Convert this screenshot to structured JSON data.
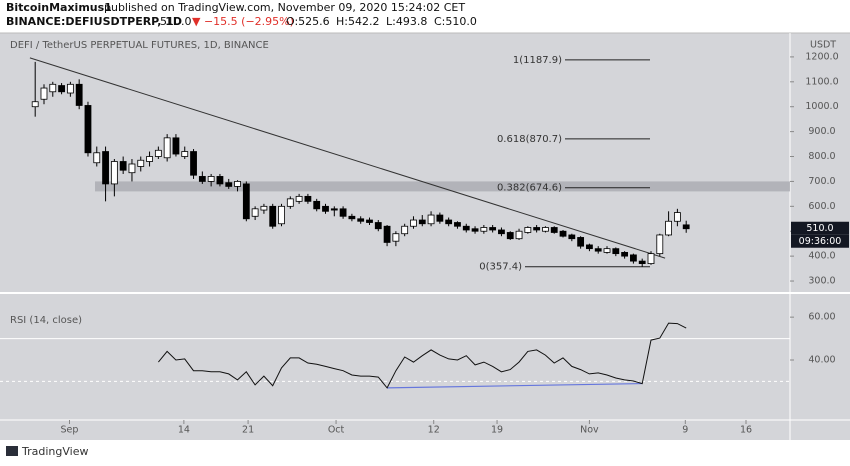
{
  "header": {
    "author": "BitcoinMaximus1",
    "published": "published on TradingView.com, November 09, 2020 15:24:02 CET",
    "symbol": "BINANCE:DEFIUSDTPERP, 1D",
    "last": "510.0",
    "change": "▼ −15.5 (−2.95%)",
    "ohlc": [
      "O:525.6",
      "H:542.2",
      "L:493.8",
      "C:510.0"
    ]
  },
  "footer": "TradingView",
  "chart_data": [
    {
      "type": "candlestick",
      "title": "DEFI / TetherUS PERPETUAL FUTURES, 1D, BINANCE",
      "axis_unit": "USDT",
      "up_color": "#ffffff",
      "down_color": "#000000",
      "candles": [
        [
          1000,
          1180,
          960,
          1020
        ],
        [
          1030,
          1090,
          1010,
          1075
        ],
        [
          1060,
          1100,
          1040,
          1090
        ],
        [
          1085,
          1095,
          1050,
          1060
        ],
        [
          1055,
          1100,
          1040,
          1090
        ],
        [
          1090,
          1110,
          990,
          1005
        ],
        [
          1005,
          1020,
          800,
          815
        ],
        [
          775,
          840,
          760,
          815
        ],
        [
          820,
          840,
          620,
          690
        ],
        [
          690,
          790,
          640,
          780
        ],
        [
          780,
          800,
          730,
          745
        ],
        [
          735,
          790,
          700,
          770
        ],
        [
          760,
          800,
          740,
          785
        ],
        [
          780,
          820,
          760,
          800
        ],
        [
          800,
          840,
          790,
          825
        ],
        [
          795,
          890,
          780,
          875
        ],
        [
          875,
          890,
          800,
          810
        ],
        [
          800,
          840,
          790,
          820
        ],
        [
          820,
          830,
          710,
          725
        ],
        [
          720,
          740,
          690,
          700
        ],
        [
          700,
          730,
          680,
          720
        ],
        [
          720,
          730,
          680,
          690
        ],
        [
          695,
          710,
          670,
          680
        ],
        [
          680,
          705,
          660,
          700
        ],
        [
          690,
          700,
          540,
          550
        ],
        [
          560,
          600,
          545,
          590
        ],
        [
          585,
          610,
          570,
          600
        ],
        [
          600,
          610,
          510,
          520
        ],
        [
          530,
          610,
          520,
          600
        ],
        [
          600,
          640,
          590,
          630
        ],
        [
          620,
          650,
          610,
          640
        ],
        [
          640,
          650,
          610,
          620
        ],
        [
          620,
          630,
          580,
          590
        ],
        [
          600,
          610,
          570,
          580
        ],
        [
          590,
          600,
          560,
          585
        ],
        [
          590,
          600,
          550,
          560
        ],
        [
          560,
          570,
          540,
          550
        ],
        [
          550,
          560,
          530,
          540
        ],
        [
          545,
          555,
          525,
          535
        ],
        [
          535,
          545,
          500,
          510
        ],
        [
          520,
          525,
          440,
          455
        ],
        [
          460,
          500,
          440,
          490
        ],
        [
          490,
          530,
          480,
          520
        ],
        [
          520,
          560,
          510,
          545
        ],
        [
          545,
          565,
          520,
          530
        ],
        [
          530,
          580,
          520,
          565
        ],
        [
          565,
          575,
          530,
          540
        ],
        [
          545,
          555,
          520,
          530
        ],
        [
          535,
          540,
          510,
          520
        ],
        [
          520,
          530,
          495,
          505
        ],
        [
          510,
          520,
          490,
          500
        ],
        [
          500,
          525,
          490,
          515
        ],
        [
          515,
          525,
          495,
          505
        ],
        [
          505,
          515,
          480,
          490
        ],
        [
          495,
          500,
          465,
          470
        ],
        [
          470,
          510,
          465,
          500
        ],
        [
          495,
          520,
          490,
          515
        ],
        [
          515,
          525,
          495,
          505
        ],
        [
          500,
          520,
          495,
          515
        ],
        [
          515,
          520,
          490,
          495
        ],
        [
          500,
          505,
          475,
          480
        ],
        [
          485,
          490,
          460,
          470
        ],
        [
          475,
          480,
          430,
          440
        ],
        [
          445,
          450,
          420,
          430
        ],
        [
          430,
          440,
          410,
          420
        ],
        [
          415,
          440,
          410,
          430
        ],
        [
          430,
          435,
          400,
          410
        ],
        [
          415,
          420,
          390,
          400
        ],
        [
          405,
          410,
          370,
          380
        ],
        [
          380,
          390,
          357,
          370
        ],
        [
          370,
          420,
          365,
          410
        ],
        [
          410,
          490,
          400,
          485
        ],
        [
          485,
          580,
          480,
          540
        ],
        [
          540,
          590,
          520,
          575
        ],
        [
          525.6,
          542.2,
          493.8,
          510.0
        ]
      ],
      "xlim": [
        -4,
        85.8
      ],
      "xticks": [
        {
          "value": 3.9,
          "label": "Sep"
        },
        {
          "value": 16.9,
          "label": "14"
        },
        {
          "value": 24.2,
          "label": "21"
        },
        {
          "value": 34.2,
          "label": "Oct"
        },
        {
          "value": 45.3,
          "label": "12"
        },
        {
          "value": 52.5,
          "label": "19"
        },
        {
          "value": 63,
          "label": "Nov"
        },
        {
          "value": 73.9,
          "label": "9"
        },
        {
          "value": 80.8,
          "label": "16"
        }
      ],
      "ylim": [
        264,
        1296
      ],
      "yticks": [
        {
          "value": 300,
          "label": "300.0"
        },
        {
          "value": 400,
          "label": "400.0"
        },
        {
          "value": 500,
          "label": "500.0"
        },
        {
          "value": 600,
          "label": "600.0"
        },
        {
          "value": 700,
          "label": "700.0"
        },
        {
          "value": 800,
          "label": "800.0"
        },
        {
          "value": 900,
          "label": "900.0"
        },
        {
          "value": 1000,
          "label": "1000.0"
        },
        {
          "value": 1100,
          "label": "1100.0"
        },
        {
          "value": 1200,
          "label": "1200.0"
        }
      ],
      "price_label": "510.0",
      "countdown": "09:36:00",
      "trendline": {
        "x": [
          -0.6,
          71.6
        ],
        "y": [
          1196,
          392
        ]
      },
      "zone": [
        660,
        700
      ],
      "fib_levels": [
        {
          "value": 1187.9,
          "label": "1(1187.9)"
        },
        {
          "value": 870.7,
          "label": "0.618(870.7)"
        },
        {
          "value": 674.6,
          "label": "0.382(674.6)"
        },
        {
          "value": 357.4,
          "label": "0(357.4)"
        }
      ]
    },
    {
      "type": "line",
      "title": "RSI (14, close)",
      "color": "#111111",
      "values": [
        null,
        null,
        null,
        null,
        null,
        null,
        null,
        null,
        null,
        null,
        null,
        null,
        null,
        null,
        39,
        44,
        40,
        40.5,
        35,
        35,
        34.5,
        34.5,
        33.5,
        30.7,
        34.5,
        28.4,
        32.5,
        28,
        36.3,
        41,
        41,
        38.6,
        38,
        37,
        36,
        35,
        33,
        32.5,
        32.5,
        32,
        27,
        35,
        41.4,
        39,
        42,
        44.7,
        42.3,
        40.5,
        40,
        42,
        37.7,
        39,
        37,
        34.5,
        35.5,
        39,
        44,
        44.7,
        42.3,
        38.6,
        41,
        37,
        35.5,
        33.5,
        34,
        33,
        31.6,
        30.7,
        30.2,
        29,
        49.3,
        50.2,
        57.2,
        57,
        54.9
      ],
      "ylim": [
        12,
        68
      ],
      "yticks": [
        {
          "value": 60,
          "label": "60.00"
        },
        {
          "value": 40,
          "label": "40.00"
        }
      ],
      "levels": [
        50,
        30
      ],
      "divergence": {
        "x": [
          40,
          69
        ],
        "y": [
          27,
          29
        ],
        "color": "#6677dd"
      }
    }
  ]
}
